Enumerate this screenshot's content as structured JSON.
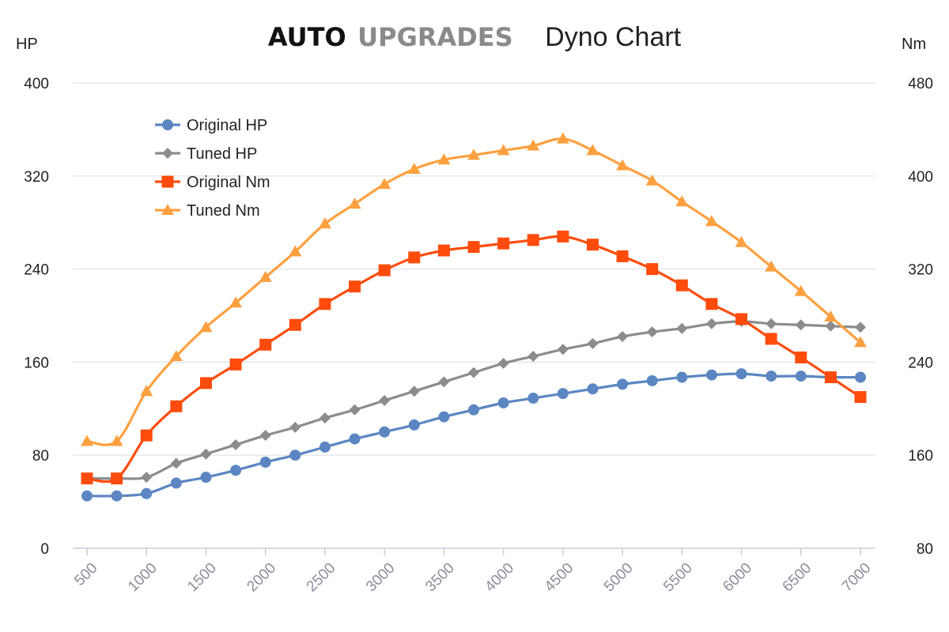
{
  "chart_data": {
    "type": "line",
    "title": {
      "brand_part1": "AUTO",
      "brand_part2": "UPGRADES",
      "text": "Dyno Chart"
    },
    "y_left": {
      "label": "HP",
      "lim": [
        0,
        400
      ],
      "ticks": [
        0,
        80,
        160,
        240,
        320,
        400
      ]
    },
    "y_right": {
      "label": "Nm",
      "lim": [
        80,
        480
      ],
      "ticks": [
        80,
        160,
        240,
        320,
        400,
        480
      ]
    },
    "x": [
      500,
      750,
      1000,
      1250,
      1500,
      1750,
      2000,
      2250,
      2500,
      2750,
      3000,
      3250,
      3500,
      3750,
      4000,
      4250,
      4500,
      4750,
      5000,
      5250,
      5500,
      5750,
      6000,
      6250,
      6500,
      6750,
      7000
    ],
    "x_ticks": [
      500,
      1000,
      1500,
      2000,
      2500,
      3000,
      3500,
      4000,
      4500,
      5000,
      5500,
      6000,
      6500,
      7000
    ],
    "grid": true,
    "legend_position": "top-left",
    "series": [
      {
        "name": "Original HP",
        "axis": "left",
        "color": "#5b86c2",
        "marker": "circle",
        "values": [
          45,
          45,
          47,
          56,
          61,
          67,
          74,
          80,
          87,
          94,
          100,
          106,
          113,
          119,
          125,
          129,
          133,
          137,
          141,
          144,
          147,
          149,
          150,
          148,
          148,
          147,
          147
        ]
      },
      {
        "name": "Tuned HP",
        "axis": "left",
        "color": "#8c8c8c",
        "marker": "diamond",
        "values": [
          60,
          60,
          61,
          73,
          81,
          89,
          97,
          104,
          112,
          119,
          127,
          135,
          143,
          151,
          159,
          165,
          171,
          176,
          182,
          186,
          189,
          193,
          195,
          193,
          192,
          191,
          190
        ]
      },
      {
        "name": "Original Nm",
        "axis": "right",
        "color": "#ff4c0c",
        "marker": "square",
        "values": [
          140,
          140,
          177,
          202,
          222,
          238,
          255,
          272,
          290,
          305,
          319,
          330,
          336,
          339,
          342,
          345,
          348,
          341,
          331,
          320,
          306,
          290,
          277,
          260,
          244,
          227,
          210
        ]
      },
      {
        "name": "Tuned Nm",
        "axis": "right",
        "color": "#ffa040",
        "marker": "triangle",
        "values": [
          172,
          172,
          215,
          245,
          270,
          291,
          313,
          335,
          359,
          376,
          393,
          406,
          414,
          418,
          422,
          426,
          432,
          422,
          409,
          396,
          378,
          361,
          343,
          322,
          301,
          279,
          257
        ]
      }
    ]
  }
}
